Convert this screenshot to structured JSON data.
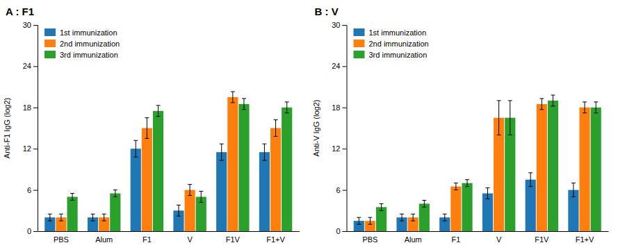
{
  "chart_data": [
    {
      "type": "bar",
      "title": "A : F1",
      "ylabel": "Anti-F1 IgG (log2)",
      "categories": [
        "PBS",
        "Alum",
        "F1",
        "V",
        "F1V",
        "F1+V"
      ],
      "series": [
        {
          "name": "1st immunization",
          "values": [
            2.0,
            2.0,
            12.0,
            3.0,
            11.5,
            11.5
          ],
          "errors": [
            0.5,
            0.5,
            1.2,
            0.8,
            1.2,
            1.2
          ]
        },
        {
          "name": "2nd immunization",
          "values": [
            2.0,
            2.0,
            15.0,
            6.0,
            19.5,
            15.0
          ],
          "errors": [
            0.5,
            0.5,
            1.5,
            0.8,
            0.8,
            1.2
          ]
        },
        {
          "name": "3rd immunization",
          "values": [
            5.0,
            5.5,
            17.5,
            5.0,
            18.5,
            18.0
          ],
          "errors": [
            0.5,
            0.5,
            0.8,
            0.8,
            0.8,
            0.8
          ]
        }
      ],
      "ylim": [
        0,
        30
      ],
      "yticks": [
        0,
        6,
        12,
        18,
        24,
        30
      ],
      "legend": "upper left",
      "grid": false
    },
    {
      "type": "bar",
      "title": "B : V",
      "ylabel": "Anti-V IgG (log2)",
      "categories": [
        "PBS",
        "Alum",
        "F1",
        "V",
        "F1V",
        "F1+V"
      ],
      "series": [
        {
          "name": "1st immunization",
          "values": [
            1.5,
            2.0,
            2.0,
            5.5,
            7.5,
            6.0
          ],
          "errors": [
            0.5,
            0.5,
            0.5,
            0.8,
            1.0,
            1.0
          ]
        },
        {
          "name": "2nd immunization",
          "values": [
            1.5,
            2.0,
            6.5,
            16.5,
            18.5,
            18.0
          ],
          "errors": [
            0.5,
            0.5,
            0.5,
            2.5,
            0.8,
            0.8
          ]
        },
        {
          "name": "3rd immunization",
          "values": [
            3.5,
            4.0,
            7.0,
            16.5,
            19.0,
            18.0
          ],
          "errors": [
            0.5,
            0.5,
            0.5,
            2.5,
            0.8,
            0.8
          ]
        }
      ],
      "ylim": [
        0,
        30
      ],
      "yticks": [
        0,
        6,
        12,
        18,
        24,
        30
      ],
      "legend": "upper left",
      "grid": false
    }
  ]
}
